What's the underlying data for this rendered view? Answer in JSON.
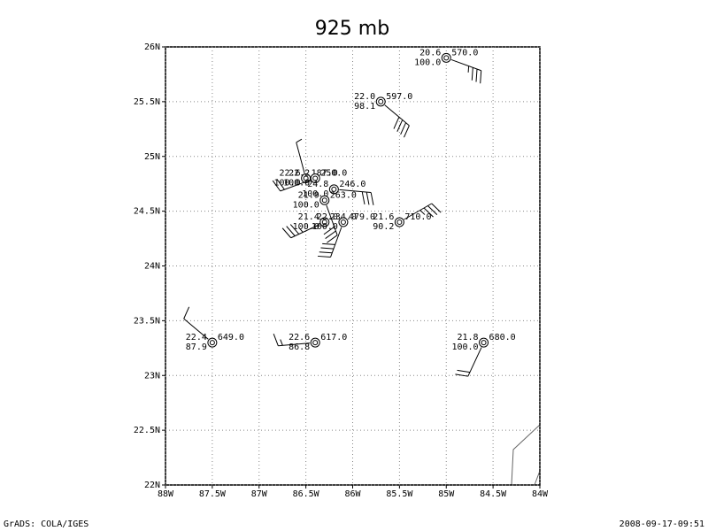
{
  "map": {
    "title": "925 mb",
    "footer_left": "GrADS: COLA/IGES",
    "footer_right": "2008-09-17-09:51",
    "xlim": [
      -88,
      -84
    ],
    "ylim": [
      22,
      26
    ],
    "xticks": [
      {
        "value": -88,
        "label": "88W"
      },
      {
        "value": -87.5,
        "label": "87.5W"
      },
      {
        "value": -87,
        "label": "87W"
      },
      {
        "value": -86.5,
        "label": "86.5W"
      },
      {
        "value": -86,
        "label": "86W"
      },
      {
        "value": -85.5,
        "label": "85.5W"
      },
      {
        "value": -85,
        "label": "85W"
      },
      {
        "value": -84.5,
        "label": "84.5W"
      },
      {
        "value": -84,
        "label": "84W"
      }
    ],
    "yticks": [
      {
        "value": 22,
        "label": "22N"
      },
      {
        "value": 22.5,
        "label": "22.5N"
      },
      {
        "value": 23,
        "label": "23N"
      },
      {
        "value": 23.5,
        "label": "23.5N"
      },
      {
        "value": 24,
        "label": "24N"
      },
      {
        "value": 24.5,
        "label": "24.5N"
      },
      {
        "value": 25,
        "label": "25N"
      },
      {
        "value": 25.5,
        "label": "25.5N"
      },
      {
        "value": 26,
        "label": "26N"
      }
    ],
    "grid": true,
    "stations": [
      {
        "lon": -85.0,
        "lat": 25.9,
        "temp": "20.6",
        "rh": "100.0",
        "id": "570.0",
        "wind_dir": 110,
        "wind_speed": 35
      },
      {
        "lon": -85.7,
        "lat": 25.5,
        "temp": "22.0",
        "rh": "98.1",
        "id": "597.0",
        "wind_dir": 130,
        "wind_speed": 40
      },
      {
        "lon": -85.5,
        "lat": 24.4,
        "temp": "21.6",
        "rh": "90.2",
        "id": "710.0",
        "wind_dir": 60,
        "wind_speed": 35
      },
      {
        "lon": -86.5,
        "lat": 24.8,
        "temp": "22.6",
        "rh": "100.0",
        "id": "187.0",
        "wind_dir": 345,
        "wind_speed": 5
      },
      {
        "lon": -86.4,
        "lat": 24.8,
        "temp": "22.2",
        "rh": "100.0",
        "id": "250.0",
        "wind_dir": 250,
        "wind_speed": 20
      },
      {
        "lon": -86.2,
        "lat": 24.7,
        "temp": "24.8",
        "rh": "100.0",
        "id": "246.0",
        "wind_dir": 95,
        "wind_speed": 30
      },
      {
        "lon": -86.3,
        "lat": 24.6,
        "temp": "21.9",
        "rh": "100.0",
        "id": "263.0",
        "wind_dir": 160,
        "wind_speed": 30
      },
      {
        "lon": -86.3,
        "lat": 24.4,
        "temp": "21.4",
        "rh": "100.0",
        "id": "234.0",
        "wind_dir": 245,
        "wind_speed": 35
      },
      {
        "lon": -86.1,
        "lat": 24.4,
        "temp": "22.0",
        "rh": "100.0",
        "id": "479.0",
        "wind_dir": 200,
        "wind_speed": 40
      },
      {
        "lon": -87.5,
        "lat": 23.3,
        "temp": "22.4",
        "rh": "87.9",
        "id": "649.0",
        "wind_dir": 310,
        "wind_speed": 10
      },
      {
        "lon": -86.4,
        "lat": 23.3,
        "temp": "22.6",
        "rh": "86.8",
        "id": "617.0",
        "wind_dir": 265,
        "wind_speed": 15
      },
      {
        "lon": -84.6,
        "lat": 23.3,
        "temp": "21.8",
        "rh": "100.0",
        "id": "680.0",
        "wind_dir": 205,
        "wind_speed": 20
      }
    ]
  }
}
